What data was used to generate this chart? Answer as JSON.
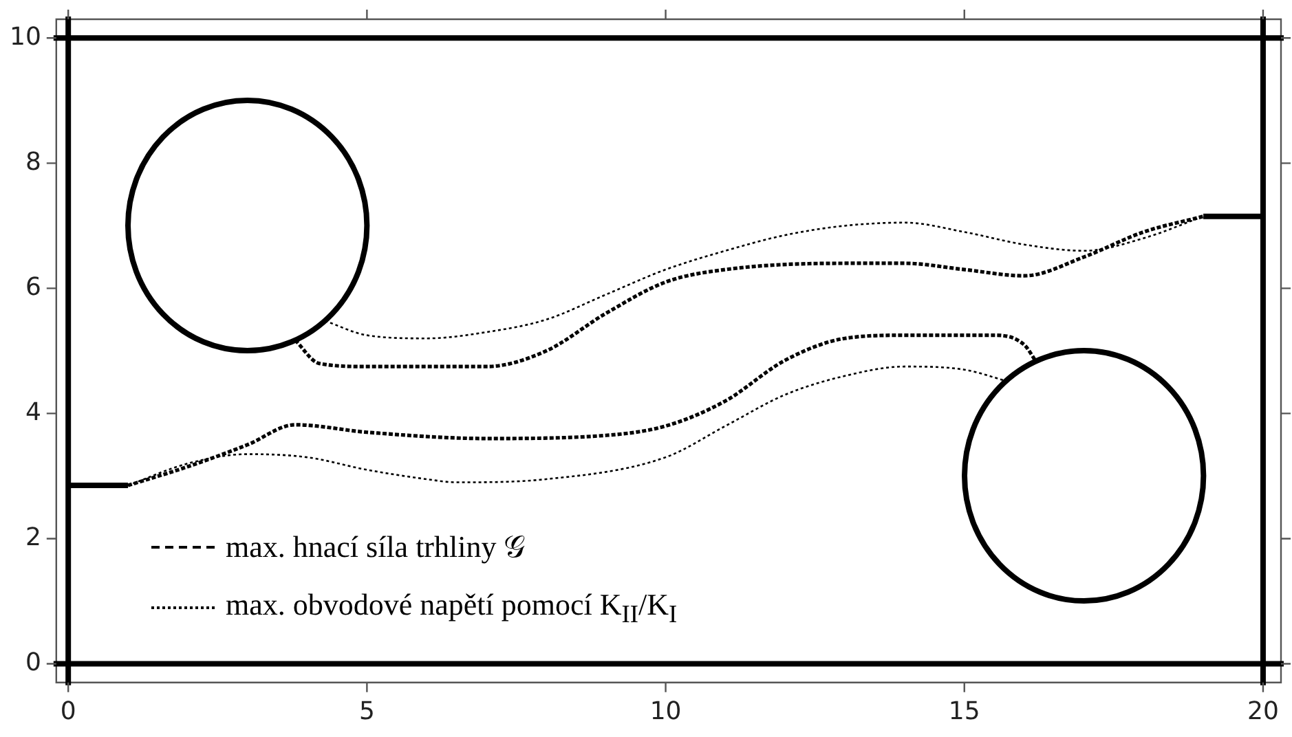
{
  "chart_data": {
    "type": "line",
    "xlim": [
      -0.2,
      20.3
    ],
    "ylim": [
      -0.3,
      10.3
    ],
    "xticks": [
      0,
      5,
      10,
      15,
      20
    ],
    "yticks": [
      0,
      2,
      4,
      6,
      8,
      10
    ],
    "grid": false,
    "legend": "bottom left",
    "marker": "none",
    "ref_lines": [
      {
        "axis": "y",
        "value": 0,
        "color": "#000000"
      },
      {
        "axis": "y",
        "value": 10,
        "color": "#000000"
      },
      {
        "axis": "x",
        "value": 0,
        "color": "#000000"
      },
      {
        "axis": "x",
        "value": 20,
        "color": "#000000"
      }
    ],
    "series": [
      {
        "color": "#000000",
        "line_style": "solid",
        "x": [
          0,
          1
        ],
        "values": [
          2.85,
          2.85
        ]
      },
      {
        "color": "#000000",
        "line_style": "solid",
        "x": [
          19,
          20
        ],
        "values": [
          7.15,
          7.15
        ]
      },
      {
        "name": "max. hnací síla trhliny 𝒢",
        "color": "#000000",
        "line_style": "dashed",
        "x": [
          1,
          2,
          3,
          3.8,
          5,
          7,
          9,
          10,
          11,
          12,
          13,
          14,
          15.5,
          16,
          16.2,
          null,
          3.8,
          4.2,
          5,
          7,
          8,
          9,
          10,
          11,
          13,
          14,
          15,
          16,
          17,
          18,
          19
        ],
        "values": [
          2.85,
          3.15,
          3.5,
          3.82,
          3.7,
          3.6,
          3.65,
          3.8,
          4.2,
          4.85,
          5.2,
          5.25,
          5.25,
          5.1,
          4.83,
          null,
          5.17,
          4.8,
          4.75,
          4.75,
          5.0,
          5.6,
          6.1,
          6.3,
          6.4,
          6.4,
          6.3,
          6.2,
          6.5,
          6.9,
          7.15
        ]
      },
      {
        "name": "max. obvodové napětí pomocí K$_{II}$/K$_{I}$",
        "color": "#000000",
        "line_style": "dotted",
        "x": [
          1,
          2,
          3,
          4,
          5,
          6,
          6.5,
          8,
          10,
          11,
          12,
          13,
          14,
          15,
          15.7,
          null,
          4.3,
          5,
          6,
          7,
          8,
          9,
          10,
          11,
          12,
          13,
          14,
          15,
          16,
          17,
          18,
          19
        ],
        "values": [
          2.85,
          3.2,
          3.35,
          3.3,
          3.1,
          2.95,
          2.9,
          2.95,
          3.3,
          3.8,
          4.3,
          4.6,
          4.75,
          4.7,
          4.52,
          null,
          5.48,
          5.25,
          5.2,
          5.3,
          5.5,
          5.9,
          6.3,
          6.6,
          6.85,
          7.0,
          7.05,
          6.9,
          6.7,
          6.6,
          6.8,
          7.15
        ]
      }
    ]
  }
}
